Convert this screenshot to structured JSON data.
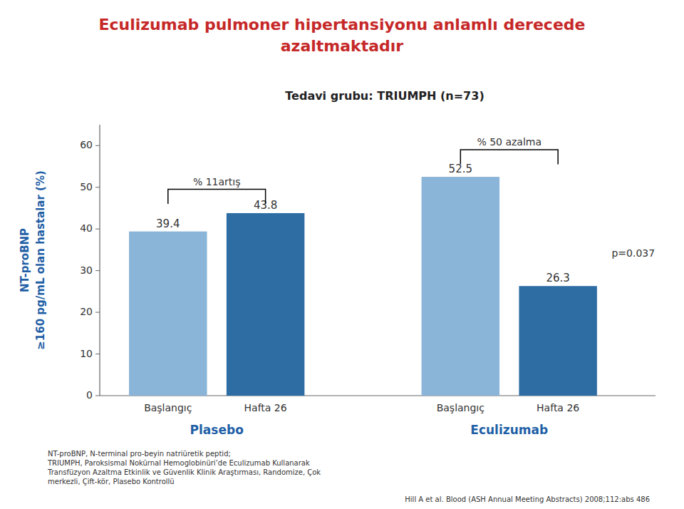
{
  "chart_data": {
    "type": "bar",
    "title": "Eculizumab pulmoner hipertansiyonu anlamlı derecede\nazaltmaktadır",
    "subtitle": "Tedavi grubu: TRIUMPH (n=73)",
    "ylabel": "NT-proBNP\n≥160 pg/mL olan hastalar (%)",
    "categories": [
      "Başlangıç",
      "Hafta 26",
      "Başlangıç",
      "Hafta 26"
    ],
    "group_labels": [
      "Plasebo",
      "Eculizumab"
    ],
    "values": [
      39.4,
      43.8,
      52.5,
      26.3
    ],
    "colors": [
      "#8ab4d8",
      "#2e6da4",
      "#8ab4d8",
      "#2e6da4"
    ],
    "data_labels": true,
    "ylim": [
      0,
      65
    ],
    "yticks": [
      0,
      10,
      20,
      30,
      40,
      50,
      60
    ],
    "grid": false,
    "annotations": [
      {
        "type": "bracket",
        "from": 0,
        "to": 1,
        "y_start": 46.0,
        "y_top": 49.5,
        "label": "% 11artış"
      },
      {
        "type": "bracket",
        "from": 2,
        "to": 3,
        "y_start": 55.5,
        "y_top": 59.0,
        "label": "% 50 azalma"
      },
      {
        "type": "text",
        "category": 3,
        "y": 34,
        "label": "p=0.037"
      }
    ],
    "footnote": "NT-proBNP, N-terminal pro-beyin natriüretik peptid;\nTRIUMPH, Paroksismal Nokürnal Hemoglobinüri’de Eculizumab Kullanarak\nTransfüzyon Azaltma Etkinlik ve Güvenlik Klinik Araştırması, Randomize, Çok\nmerkezli, Çift-kör, Plasebo Kontrollü",
    "source": "Hill A et al. Blood (ASH Annual Meeting Abstracts) 2008;112:abs 486"
  }
}
